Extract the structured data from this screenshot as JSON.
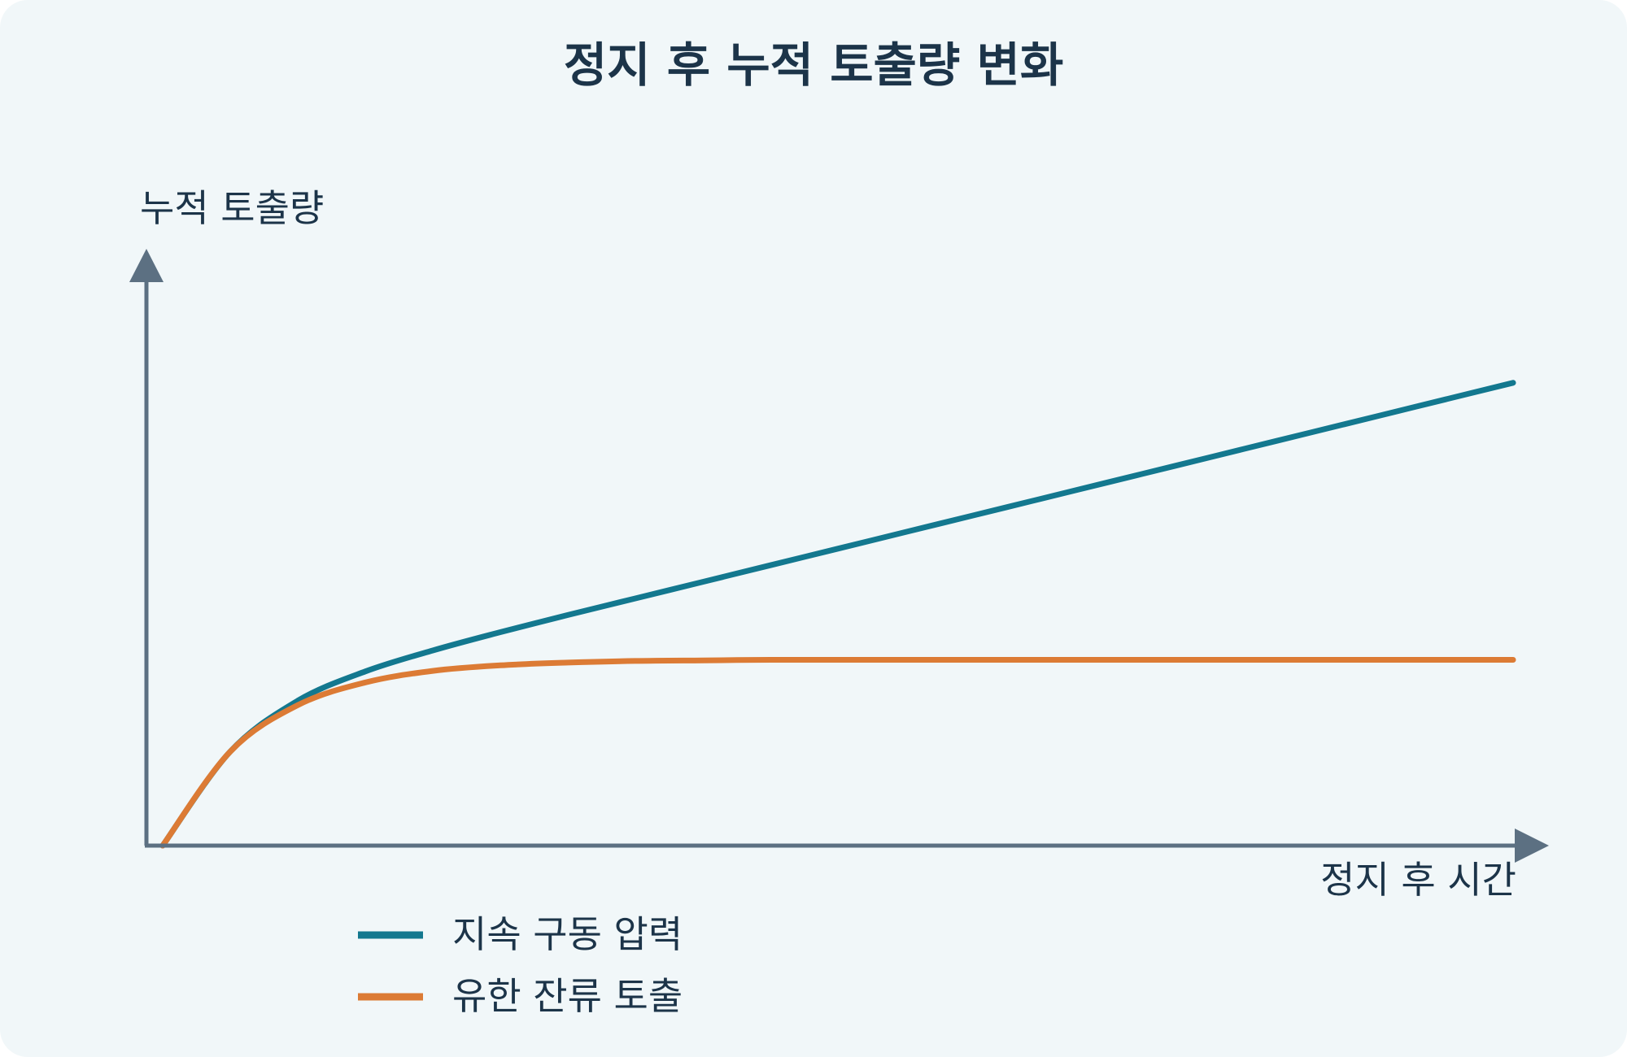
{
  "chart_data": {
    "type": "line",
    "title": "정지 후 누적 토출량 변화",
    "xlabel": "정지 후 시간",
    "ylabel": "누적 토출량",
    "xlim": [
      0,
      1
    ],
    "ylim": [
      0,
      1
    ],
    "axis_tick_labels": "none",
    "grid": false,
    "legend_position": "bottom-left",
    "colors": {
      "background": "#f1f7f9",
      "axis": "#5c7082",
      "text": "#1c3449"
    },
    "series": [
      {
        "name": "지속 구동 압력",
        "color": "#13788f",
        "x": [
          0,
          0.05,
          0.1,
          0.15,
          0.2,
          0.25,
          0.3,
          0.35,
          0.4,
          0.45,
          0.5,
          0.55,
          0.6,
          0.65,
          0.7,
          0.75,
          0.8,
          0.85,
          0.9,
          0.95,
          1.0
        ],
        "y": [
          0,
          0.17,
          0.262,
          0.315,
          0.353,
          0.386,
          0.417,
          0.447,
          0.477,
          0.507,
          0.537,
          0.567,
          0.597,
          0.627,
          0.657,
          0.687,
          0.717,
          0.747,
          0.777,
          0.807,
          0.837
        ]
      },
      {
        "name": "유한 잔류 토출",
        "color": "#dc7b35",
        "x": [
          0,
          0.05,
          0.1,
          0.15,
          0.2,
          0.25,
          0.3,
          0.35,
          0.4,
          0.45,
          0.5,
          0.55,
          0.6,
          0.65,
          0.7,
          0.75,
          0.8,
          0.85,
          0.9,
          0.95,
          1.0
        ],
        "y": [
          0,
          0.17,
          0.254,
          0.295,
          0.316,
          0.326,
          0.331,
          0.334,
          0.335,
          0.336,
          0.336,
          0.336,
          0.336,
          0.336,
          0.336,
          0.336,
          0.336,
          0.336,
          0.336,
          0.336,
          0.336
        ]
      }
    ]
  }
}
